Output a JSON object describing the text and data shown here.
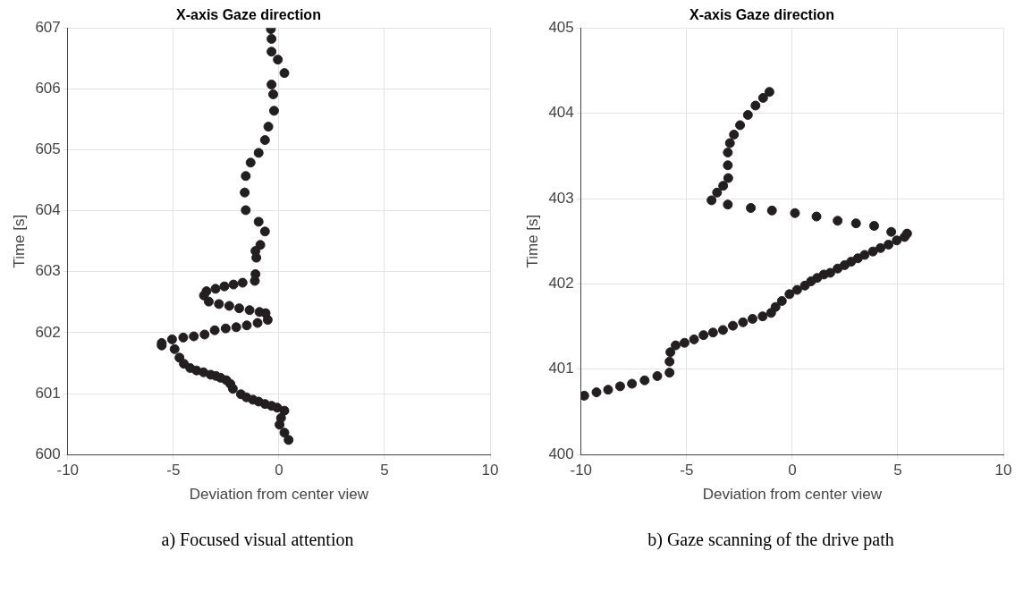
{
  "chart_data": [
    {
      "type": "scatter",
      "title": "X-axis Gaze direction",
      "xlabel": "Deviation from center view",
      "ylabel": "Time [s]",
      "xlim": [
        -10,
        10
      ],
      "xticks": [
        -10,
        -5,
        0,
        5,
        10
      ],
      "ylim": [
        600,
        607
      ],
      "yticks": [
        600,
        601,
        602,
        603,
        604,
        605,
        606,
        607
      ],
      "grid": true,
      "marker": "circle",
      "legend": false,
      "annotations": [
        "a) Focused visual attention"
      ],
      "series": [
        {
          "color": "#231f20",
          "x": [
            0.46,
            0.26,
            0.03,
            0.1,
            0.26,
            -0.08,
            -0.35,
            -0.66,
            -0.96,
            -1.23,
            -1.54,
            -1.8,
            -2.18,
            -2.3,
            -2.49,
            -2.76,
            -2.98,
            -3.23,
            -3.57,
            -3.9,
            -4.2,
            -4.5,
            -4.71,
            -4.94,
            -5.06,
            -5.55,
            -5.55,
            -4.53,
            -4.03,
            -3.52,
            -3.04,
            -2.52,
            -2.02,
            -1.52,
            -1.01,
            -0.53,
            -0.63,
            -0.92,
            -1.39,
            -1.88,
            -2.35,
            -2.84,
            -3.32,
            -3.55,
            -3.43,
            -3.0,
            -2.58,
            -2.15,
            -1.72,
            -1.14,
            -1.11,
            -1.07,
            -1.11,
            -0.88,
            -0.66,
            -0.96,
            -1.57,
            -1.62,
            -1.57,
            -1.34,
            -0.96,
            -0.66,
            -0.5,
            -0.23,
            -0.27,
            -0.35,
            0.26,
            -0.05,
            -0.35,
            -0.35,
            -0.38
          ],
          "values": [
            600.24,
            600.36,
            600.49,
            600.6,
            600.72,
            600.77,
            600.8,
            600.83,
            600.87,
            600.9,
            600.94,
            600.99,
            601.08,
            601.16,
            601.22,
            601.26,
            601.29,
            601.31,
            601.35,
            601.38,
            601.42,
            601.49,
            601.59,
            601.73,
            601.89,
            601.83,
            601.79,
            601.92,
            601.94,
            601.97,
            602.04,
            602.07,
            602.09,
            602.12,
            602.16,
            602.21,
            602.32,
            602.34,
            602.37,
            602.4,
            602.44,
            602.47,
            602.51,
            602.61,
            602.68,
            602.72,
            602.76,
            602.79,
            602.82,
            602.85,
            602.96,
            603.23,
            603.34,
            603.44,
            603.66,
            603.82,
            604.01,
            604.3,
            604.57,
            604.79,
            604.95,
            605.16,
            605.38,
            605.64,
            605.91,
            606.07,
            606.26,
            606.48,
            606.61,
            606.82,
            606.98
          ]
        }
      ]
    },
    {
      "type": "scatter",
      "title": "X-axis Gaze direction",
      "xlabel": "Deviation from center view",
      "ylabel": "Time [s]",
      "xlim": [
        -10,
        10
      ],
      "xticks": [
        -10,
        -5,
        0,
        5,
        10
      ],
      "ylim": [
        400,
        405
      ],
      "yticks": [
        400,
        401,
        402,
        403,
        404,
        405
      ],
      "grid": true,
      "marker": "circle",
      "legend": false,
      "annotations": [
        "b) Gaze scanning of the drive path"
      ],
      "series": [
        {
          "color": "#231f20",
          "x": [
            -9.85,
            -9.27,
            -8.72,
            -8.15,
            -7.59,
            -6.99,
            -6.39,
            -5.81,
            -5.81,
            -5.77,
            -5.52,
            -5.1,
            -4.65,
            -4.2,
            -3.75,
            -3.28,
            -2.81,
            -2.33,
            -1.88,
            -1.4,
            -1.0,
            -0.79,
            -0.49,
            -0.13,
            0.23,
            0.6,
            0.89,
            1.18,
            1.5,
            1.8,
            2.15,
            2.48,
            2.79,
            3.11,
            3.43,
            3.82,
            4.18,
            4.56,
            4.95,
            5.32,
            5.44,
            4.69,
            3.88,
            3.02,
            2.15,
            1.15,
            0.13,
            -0.96,
            -1.96,
            -3.05,
            -3.82,
            -3.56,
            -3.27,
            -3.03,
            -3.05,
            -3.05,
            -2.95,
            -2.76,
            -2.47,
            -2.1,
            -1.74,
            -1.38,
            -1.08
          ],
          "values": [
            400.69,
            400.73,
            400.76,
            400.8,
            400.83,
            400.87,
            400.92,
            400.96,
            401.09,
            401.2,
            401.28,
            401.31,
            401.35,
            401.4,
            401.43,
            401.46,
            401.51,
            401.55,
            401.59,
            401.62,
            401.66,
            401.73,
            401.8,
            401.88,
            401.93,
            401.98,
            402.03,
            402.07,
            402.11,
            402.13,
            402.18,
            402.22,
            402.26,
            402.3,
            402.34,
            402.38,
            402.42,
            402.46,
            402.51,
            402.55,
            402.59,
            402.61,
            402.68,
            402.71,
            402.74,
            402.79,
            402.83,
            402.86,
            402.89,
            402.93,
            402.98,
            403.07,
            403.15,
            403.24,
            403.39,
            403.54,
            403.65,
            403.75,
            403.86,
            403.98,
            404.09,
            404.18,
            404.25
          ]
        }
      ]
    }
  ]
}
